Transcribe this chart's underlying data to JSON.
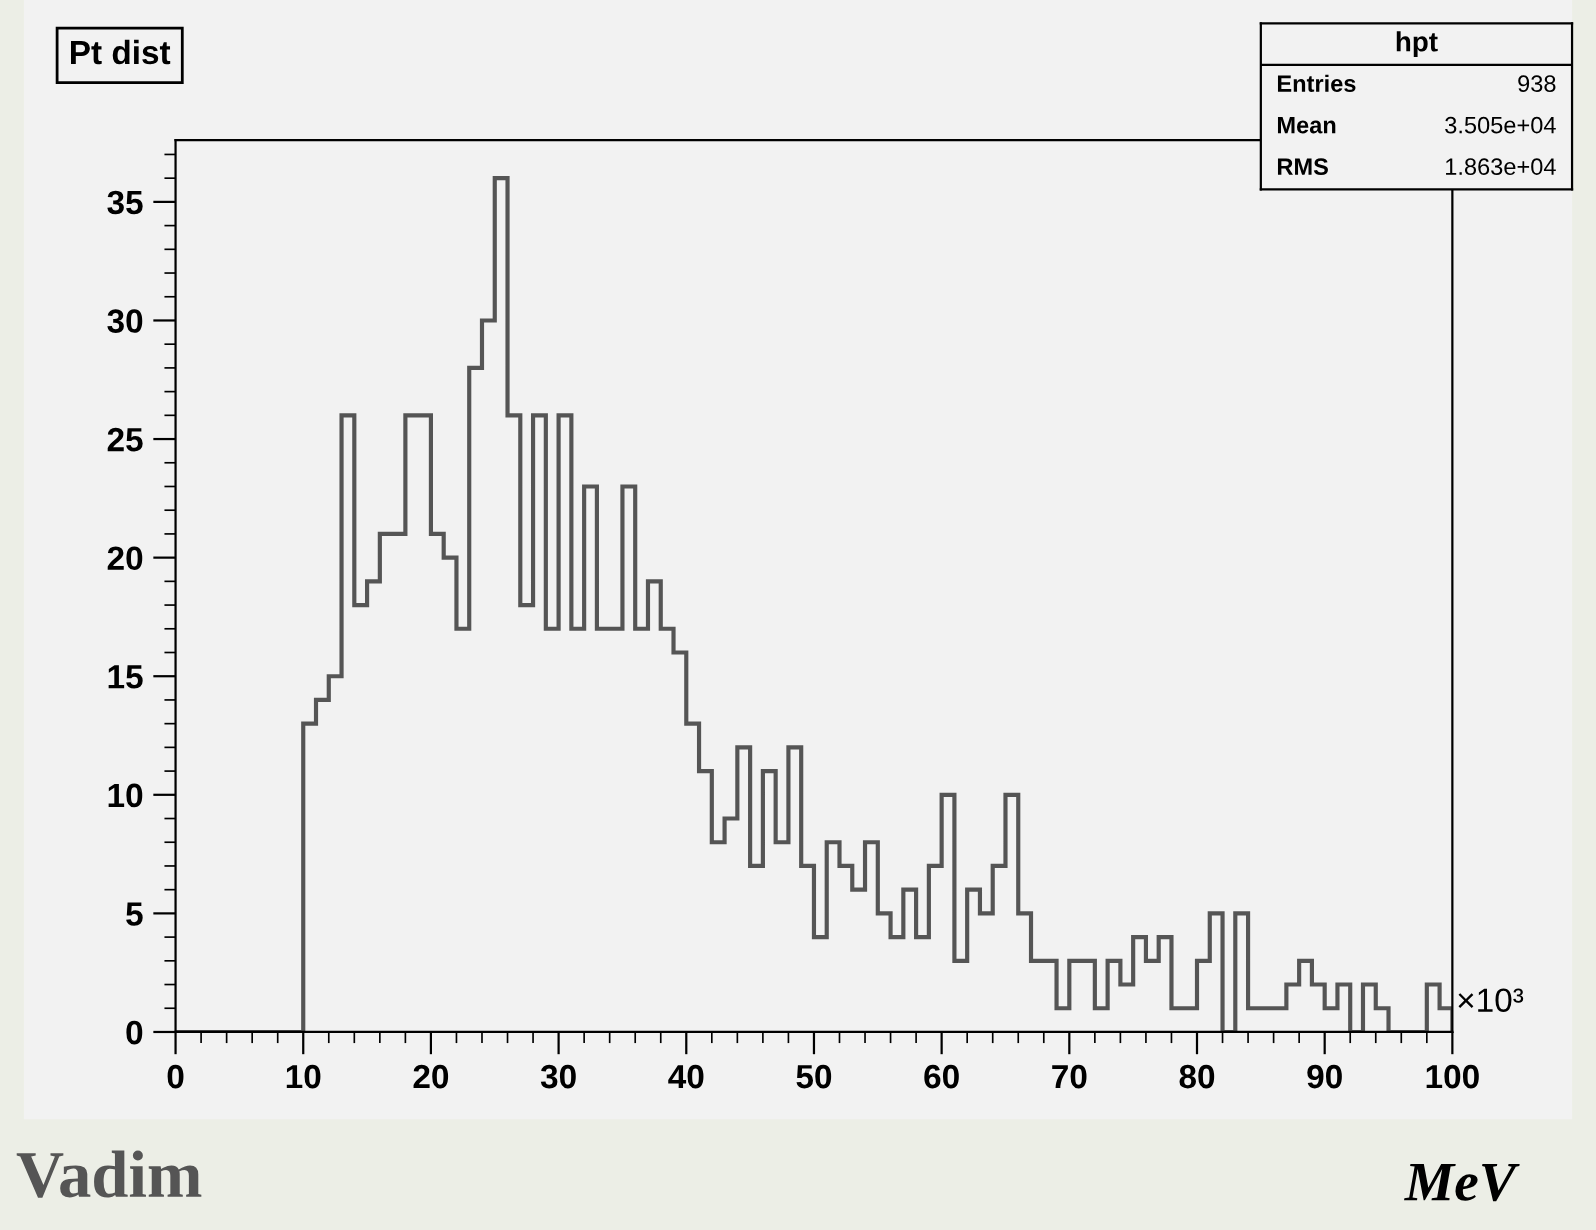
{
  "chart_data": {
    "type": "histogram",
    "title": "Pt dist",
    "bins": [
      0,
      1,
      2,
      3,
      4,
      5,
      6,
      7,
      8,
      9,
      10,
      11,
      12,
      13,
      14,
      15,
      16,
      17,
      18,
      19,
      20,
      21,
      22,
      23,
      24,
      25,
      26,
      27,
      28,
      29,
      30,
      31,
      32,
      33,
      34,
      35,
      36,
      37,
      38,
      39,
      40,
      41,
      42,
      43,
      44,
      45,
      46,
      47,
      48,
      49,
      50,
      51,
      52,
      53,
      54,
      55,
      56,
      57,
      58,
      59,
      60,
      61,
      62,
      63,
      64,
      65,
      66,
      67,
      68,
      69,
      70,
      71,
      72,
      73,
      74,
      75,
      76,
      77,
      78,
      79,
      80,
      81,
      82,
      83,
      84,
      85,
      86,
      87,
      88,
      89,
      90,
      91,
      92,
      93,
      94,
      95,
      96,
      97,
      98,
      99,
      100
    ],
    "values": [
      0,
      0,
      0,
      0,
      0,
      0,
      0,
      0,
      0,
      0,
      13,
      14,
      15,
      26,
      18,
      19,
      21,
      21,
      26,
      26,
      21,
      20,
      17,
      28,
      30,
      36,
      26,
      18,
      26,
      17,
      26,
      17,
      23,
      17,
      17,
      23,
      17,
      19,
      17,
      16,
      13,
      11,
      8,
      9,
      12,
      7,
      11,
      8,
      12,
      7,
      4,
      8,
      7,
      6,
      8,
      5,
      4,
      6,
      4,
      7,
      10,
      3,
      6,
      5,
      7,
      10,
      5,
      3,
      3,
      1,
      3,
      3,
      1,
      3,
      2,
      4,
      3,
      4,
      1,
      1,
      3,
      5,
      0,
      5,
      1,
      1,
      1,
      2,
      3,
      2,
      1,
      2,
      0,
      2,
      1,
      0,
      0,
      0,
      2,
      1
    ],
    "color": "#555555",
    "xlim": [
      0,
      100
    ],
    "xticks": [
      0,
      10,
      20,
      30,
      40,
      50,
      60,
      70,
      80,
      90,
      100
    ],
    "ylim": [
      0,
      37.6
    ],
    "yticks": [
      0,
      5,
      10,
      15,
      20,
      25,
      30,
      35
    ],
    "grid": false,
    "annotations": [
      "hpt",
      "Entries",
      "938",
      "Mean",
      "3.505e+04",
      "RMS",
      "1.863e+04",
      "×10³",
      "MeV",
      "Vadim"
    ]
  }
}
